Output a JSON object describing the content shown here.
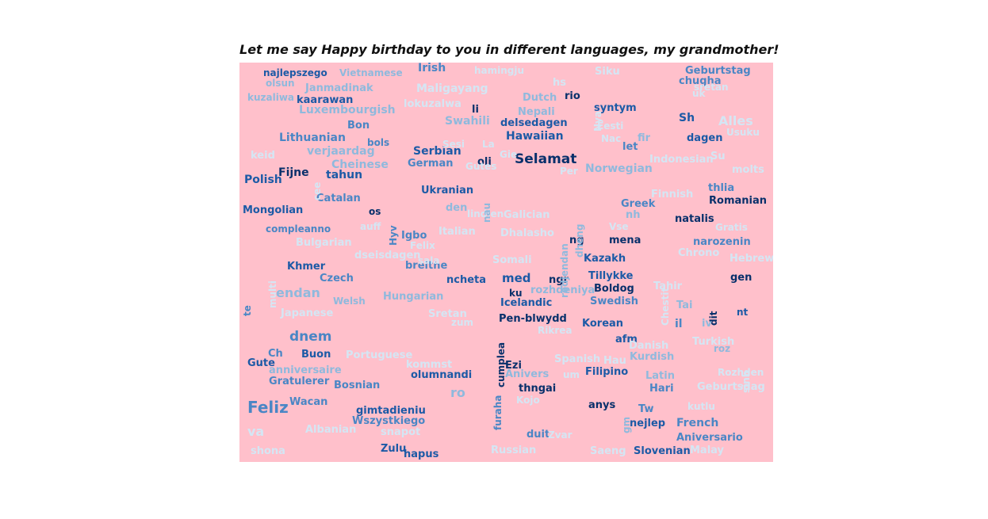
{
  "title": "Let me say Happy birthday to you in different languages, my grandmother!",
  "colors": {
    "background": "#ffc0cb",
    "palette": [
      "#08306b",
      "#1c5aa6",
      "#4a86c5",
      "#8fb9dd",
      "#d4e6f4"
    ]
  },
  "words": [
    {
      "t": "najlepszego",
      "c": 1
    },
    {
      "t": "Vietnamese",
      "c": 3
    },
    {
      "t": "Irish",
      "c": 2
    },
    {
      "t": "hamingju",
      "c": 4
    },
    {
      "t": "Siku",
      "c": 4
    },
    {
      "t": "Geburtstag",
      "c": 2
    },
    {
      "t": "olsun",
      "c": 3
    },
    {
      "t": "Janmadinak",
      "c": 3
    },
    {
      "t": "Maligayang",
      "c": 4
    },
    {
      "t": "hs",
      "c": 4
    },
    {
      "t": "chugha",
      "c": 2
    },
    {
      "t": "kuzaliwa",
      "c": 3
    },
    {
      "t": "kaarawan",
      "c": 1
    },
    {
      "t": "lokuzalwa",
      "c": 4
    },
    {
      "t": "Dutch",
      "c": 3
    },
    {
      "t": "rio",
      "c": 0
    },
    {
      "t": "syntym",
      "c": 1
    },
    {
      "t": "uk",
      "c": 4
    },
    {
      "t": "Luxembourgish",
      "c": 3
    },
    {
      "t": "li",
      "c": 0
    },
    {
      "t": "Nepali",
      "c": 3
    },
    {
      "t": "Sh",
      "c": 1
    },
    {
      "t": "Alles",
      "c": 4
    },
    {
      "t": "Swahili",
      "c": 3
    },
    {
      "t": "delsedagen",
      "c": 1
    },
    {
      "t": "Bon",
      "c": 2
    },
    {
      "t": "Usuku",
      "c": 4
    },
    {
      "t": "Lithuanian",
      "c": 2
    },
    {
      "t": "bols",
      "c": 2
    },
    {
      "t": "Hawaiian",
      "c": 1
    },
    {
      "t": "dagen",
      "c": 1
    },
    {
      "t": "fir",
      "c": 3
    },
    {
      "t": "keid",
      "c": 4
    },
    {
      "t": "verjaardag",
      "c": 3
    },
    {
      "t": "La",
      "c": 4
    },
    {
      "t": "let",
      "c": 2
    },
    {
      "t": "Serbian",
      "c": 1
    },
    {
      "t": "Selamat",
      "c": 0
    },
    {
      "t": "German",
      "c": 2
    },
    {
      "t": "oli",
      "c": 0
    },
    {
      "t": "Indonesian",
      "c": 4
    },
    {
      "t": "Su",
      "c": 4
    },
    {
      "t": "Cheinese",
      "c": 3
    },
    {
      "t": "Norwegian",
      "c": 3
    },
    {
      "t": "Per",
      "c": 4
    },
    {
      "t": "molts",
      "c": 4
    },
    {
      "t": "Fijne",
      "c": 0
    },
    {
      "t": "tahun",
      "c": 1
    },
    {
      "t": "Polish",
      "c": 1
    },
    {
      "t": "Ukranian",
      "c": 1
    },
    {
      "t": "thlia",
      "c": 2
    },
    {
      "t": "Finnish",
      "c": 4
    },
    {
      "t": "Romanian",
      "c": 0
    },
    {
      "t": "Catalan",
      "c": 2
    },
    {
      "t": "Greek",
      "c": 2
    },
    {
      "t": "Mongolian",
      "c": 1
    },
    {
      "t": "den",
      "c": 3
    },
    {
      "t": "os",
      "c": 0
    },
    {
      "t": "lindjen",
      "c": 4
    },
    {
      "t": "Galician",
      "c": 4
    },
    {
      "t": "nh",
      "c": 3
    },
    {
      "t": "natalis",
      "c": 0
    },
    {
      "t": "Vse",
      "c": 4
    },
    {
      "t": "compleanno",
      "c": 2
    },
    {
      "t": "auff",
      "c": 4
    },
    {
      "t": "Italian",
      "c": 4
    },
    {
      "t": "Gratis",
      "c": 4
    },
    {
      "t": "Igbo",
      "c": 2
    },
    {
      "t": "Dhalasho",
      "c": 4
    },
    {
      "t": "Bulgarian",
      "c": 4
    },
    {
      "t": "ng",
      "c": 0
    },
    {
      "t": "mena",
      "c": 0
    },
    {
      "t": "narozenin",
      "c": 2
    },
    {
      "t": "Felix",
      "c": 4
    },
    {
      "t": "dseisdagen",
      "c": 4
    },
    {
      "t": "Chrono",
      "c": 4
    },
    {
      "t": "Kazakh",
      "c": 1
    },
    {
      "t": "Somali",
      "c": 4
    },
    {
      "t": "Hebrew",
      "c": 4
    },
    {
      "t": "Khmer",
      "c": 1
    },
    {
      "t": "breithe",
      "c": 2
    },
    {
      "t": "gen",
      "c": 0
    },
    {
      "t": "Czech",
      "c": 2
    },
    {
      "t": "ncheta",
      "c": 1
    },
    {
      "t": "med",
      "c": 1
    },
    {
      "t": "ngr",
      "c": 0
    },
    {
      "t": "Tillykke",
      "c": 1
    },
    {
      "t": "endan",
      "c": 3
    },
    {
      "t": "ku",
      "c": 0
    },
    {
      "t": "rozhdeniya",
      "c": 3
    },
    {
      "t": "Boldog",
      "c": 0
    },
    {
      "t": "Tahir",
      "c": 4
    },
    {
      "t": "Welsh",
      "c": 3
    },
    {
      "t": "Hungarian",
      "c": 3
    },
    {
      "t": "Icelandic",
      "c": 1
    },
    {
      "t": "Swedish",
      "c": 2
    },
    {
      "t": "Tai",
      "c": 3
    },
    {
      "t": "Japanese",
      "c": 4
    },
    {
      "t": "nt",
      "c": 1
    },
    {
      "t": "Pen-blwydd",
      "c": 0
    },
    {
      "t": "Sretan",
      "c": 4
    },
    {
      "t": "zum",
      "c": 4
    },
    {
      "t": "Korean",
      "c": 1
    },
    {
      "t": "il",
      "c": 2
    },
    {
      "t": "iv",
      "c": 3
    },
    {
      "t": "Rikrea",
      "c": 4
    },
    {
      "t": "dnem",
      "c": 2
    },
    {
      "t": "afm",
      "c": 1
    },
    {
      "t": "Danish",
      "c": 4
    },
    {
      "t": "Turkish",
      "c": 4
    },
    {
      "t": "roz",
      "c": 3
    },
    {
      "t": "Ch",
      "c": 2
    },
    {
      "t": "Buon",
      "c": 1
    },
    {
      "t": "Portuguese",
      "c": 4
    },
    {
      "t": "Spanish",
      "c": 4
    },
    {
      "t": "Hau",
      "c": 4
    },
    {
      "t": "Kurdish",
      "c": 3
    },
    {
      "t": "Gute",
      "c": 1
    },
    {
      "t": "kommst",
      "c": 4
    },
    {
      "t": "Ezi",
      "c": 0
    },
    {
      "t": "anniversaire",
      "c": 3
    },
    {
      "t": "olumnandi",
      "c": 1
    },
    {
      "t": "Anivers",
      "c": 3
    },
    {
      "t": "um",
      "c": 4
    },
    {
      "t": "Filipino",
      "c": 1
    },
    {
      "t": "Rozhden",
      "c": 4
    },
    {
      "t": "Gratulerer",
      "c": 2
    },
    {
      "t": "Latin",
      "c": 3
    },
    {
      "t": "Bosnian",
      "c": 2
    },
    {
      "t": "thngai",
      "c": 0
    },
    {
      "t": "Hari",
      "c": 2
    },
    {
      "t": "Geburtsdag",
      "c": 4
    },
    {
      "t": "ro",
      "c": 3
    },
    {
      "t": "Kojo",
      "c": 4
    },
    {
      "t": "Feliz",
      "c": 2
    },
    {
      "t": "Wacan",
      "c": 2
    },
    {
      "t": "anys",
      "c": 0
    },
    {
      "t": "Tw",
      "c": 2
    },
    {
      "t": "kutlu",
      "c": 4
    },
    {
      "t": "gimtadieniu",
      "c": 1
    },
    {
      "t": "Wszystkiego",
      "c": 2
    },
    {
      "t": "nejlep",
      "c": 1
    },
    {
      "t": "French",
      "c": 2
    },
    {
      "t": "va",
      "c": 4
    },
    {
      "t": "Albanian",
      "c": 4
    },
    {
      "t": "snapot",
      "c": 4
    },
    {
      "t": "duit",
      "c": 2
    },
    {
      "t": "Zvar",
      "c": 4
    },
    {
      "t": "Aniversario",
      "c": 2
    },
    {
      "t": "shona",
      "c": 4
    },
    {
      "t": "Zulu",
      "c": 1
    },
    {
      "t": "hapus",
      "c": 1
    },
    {
      "t": "Russian",
      "c": 4
    },
    {
      "t": "Saeng",
      "c": 4
    },
    {
      "t": "Slovenian",
      "c": 1
    },
    {
      "t": "Malay",
      "c": 4
    },
    {
      "t": "Nac",
      "c": 4
    },
    {
      "t": "Eesti",
      "c": 4
    },
    {
      "t": "Sesi",
      "c": 4
    },
    {
      "t": "Gie",
      "c": 4
    },
    {
      "t": "Gutes",
      "c": 4
    },
    {
      "t": "cumplea",
      "c": 0
    },
    {
      "t": "furaha",
      "c": 2
    },
    {
      "t": "Chestit",
      "c": 4
    },
    {
      "t": "multi",
      "c": 4
    },
    {
      "t": "Hyv",
      "c": 2
    },
    {
      "t": "nau",
      "c": 3
    },
    {
      "t": "dit",
      "c": 0
    },
    {
      "t": "sinh",
      "c": 4
    },
    {
      "t": "te",
      "c": 2
    },
    {
      "t": "dheng",
      "c": 3
    },
    {
      "t": "rodjendan",
      "c": 3
    },
    {
      "t": "Nya",
      "c": 4
    },
    {
      "t": "sretan",
      "c": 4
    },
    {
      "t": "cee",
      "c": 4
    },
    {
      "t": "sala",
      "c": 4
    },
    {
      "t": "gm",
      "c": 3
    }
  ]
}
